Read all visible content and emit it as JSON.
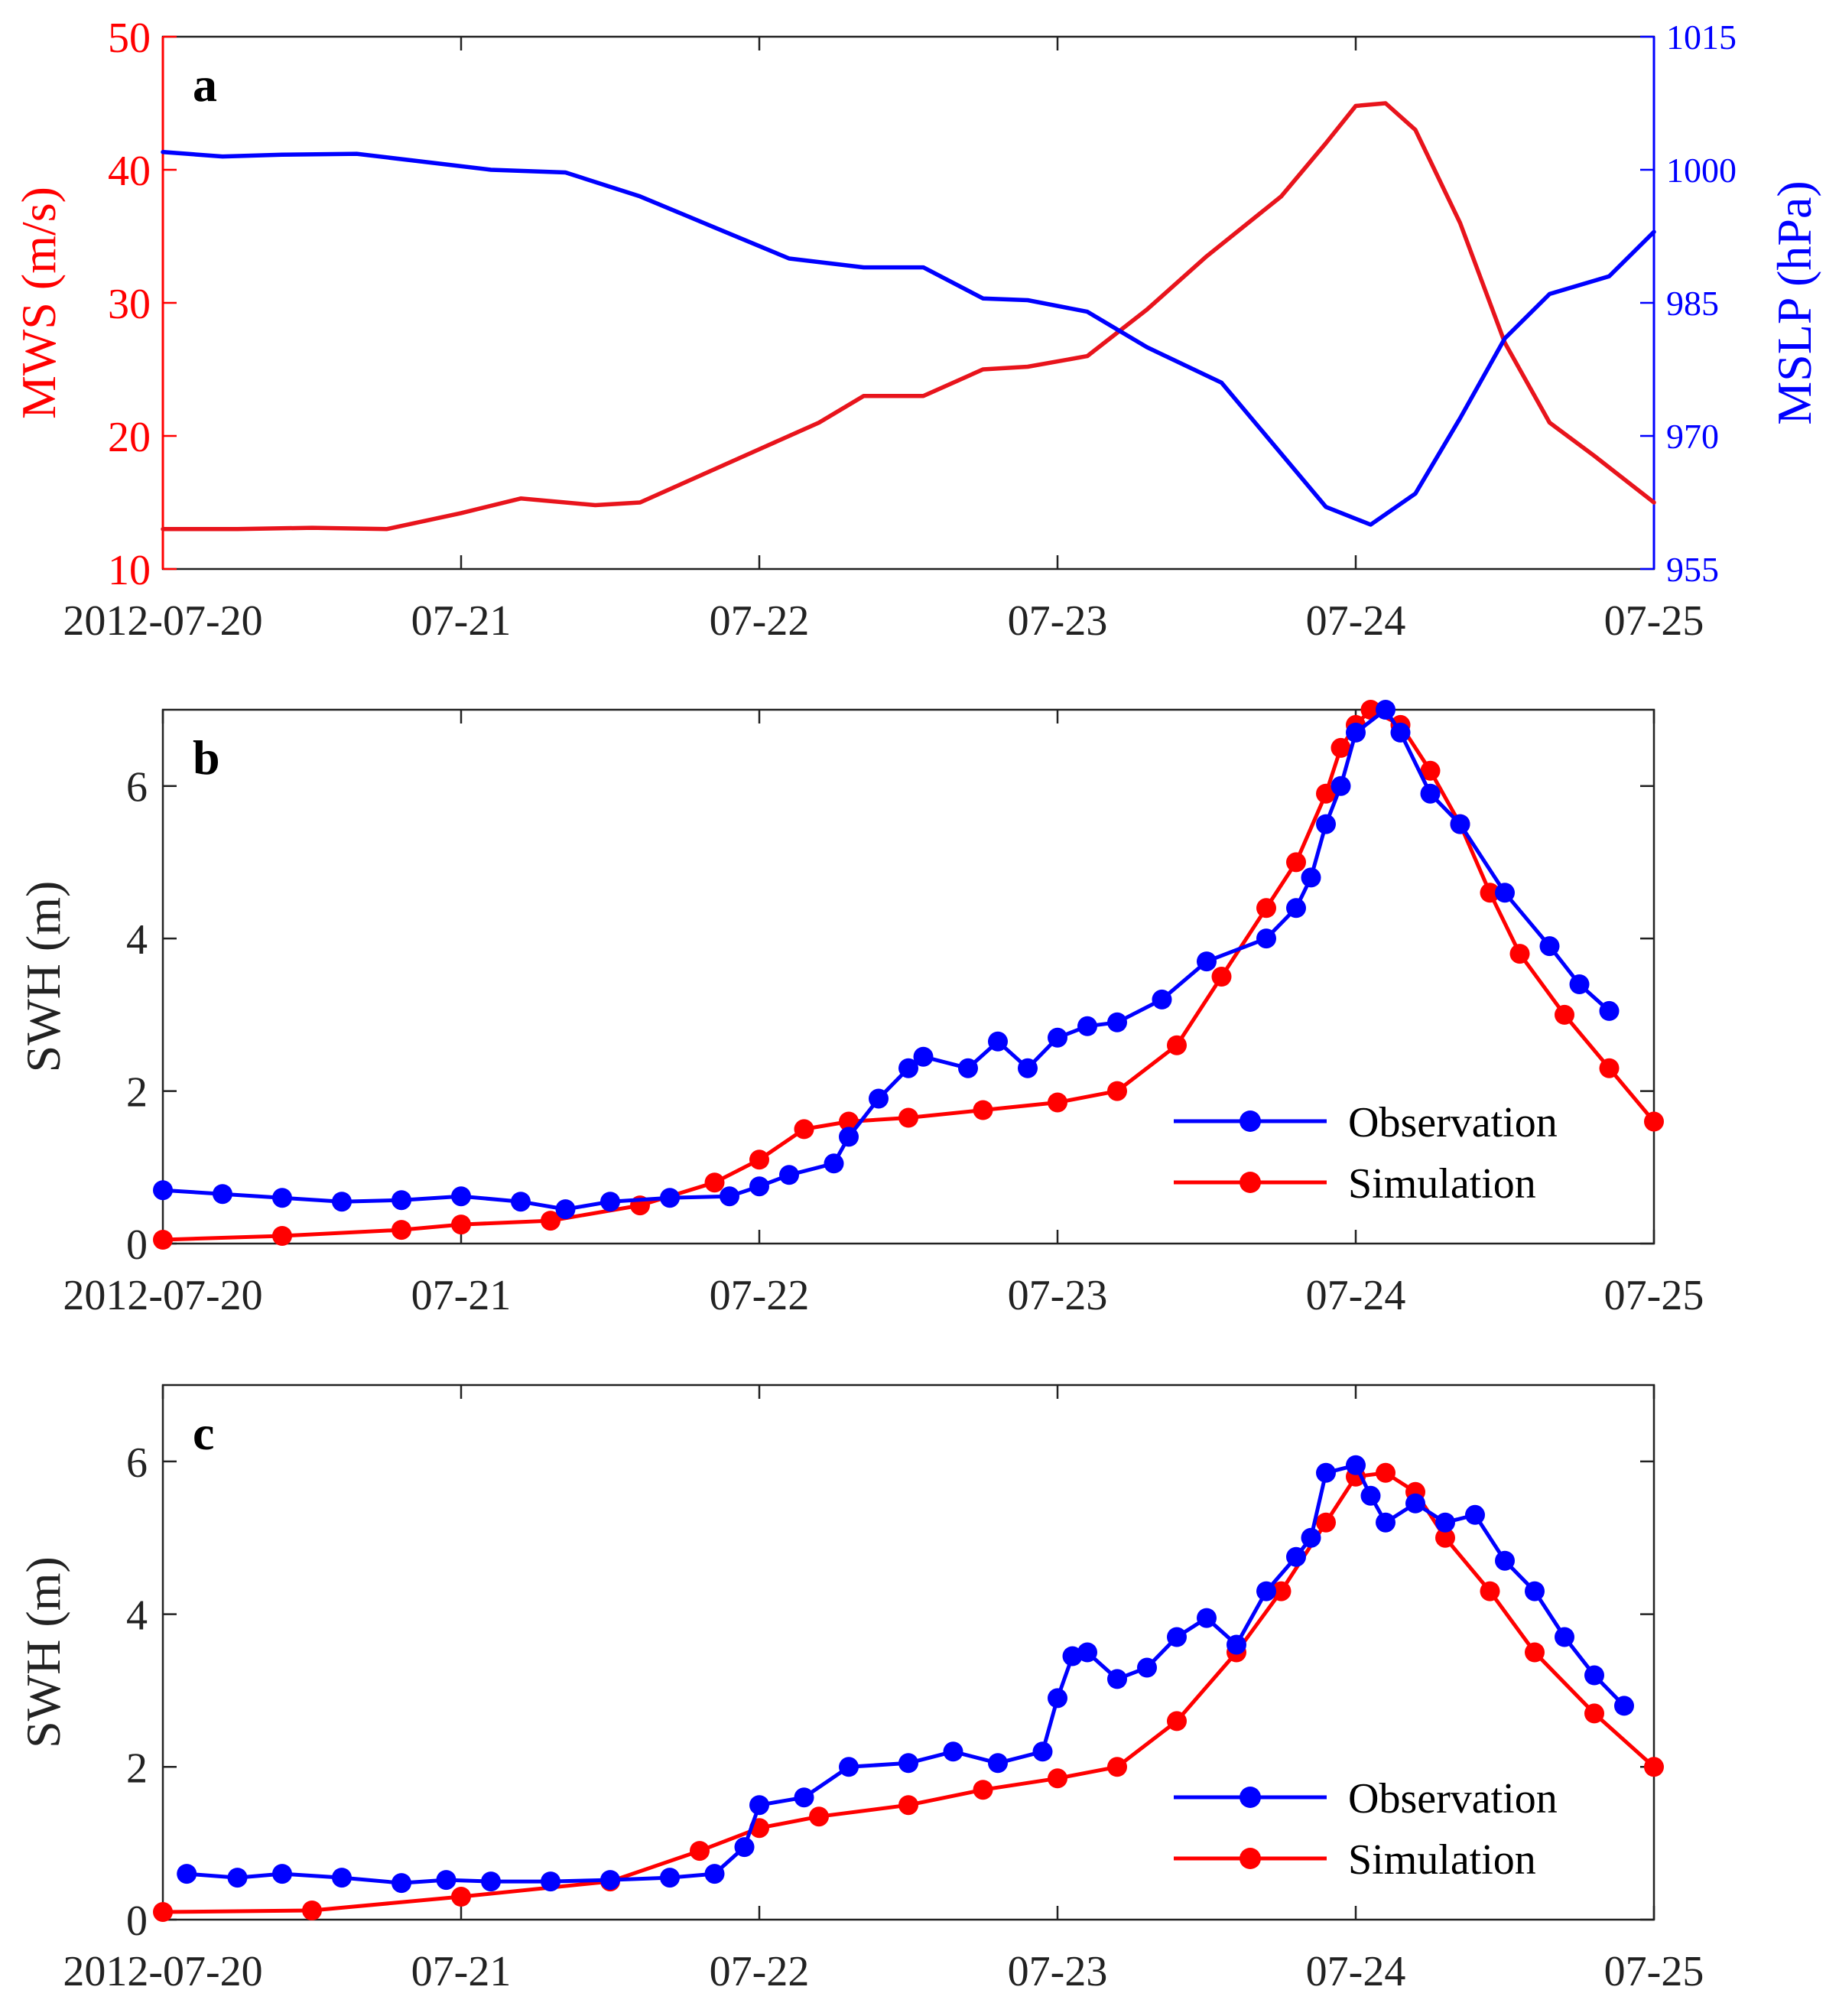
{
  "chart_data": [
    {
      "panel": "a",
      "type": "line",
      "x_dates": [
        "2012-07-20",
        "07-21",
        "07-22",
        "07-23",
        "07-24",
        "07-25"
      ],
      "xlim_days": [
        0,
        5
      ],
      "ylabel_left": "MWS (m/s)",
      "ylabel_right": "MSLP (hPa)",
      "ylim_left": [
        10,
        50
      ],
      "ylim_right": [
        955,
        1015
      ],
      "yticks_left": [
        "10",
        "20",
        "30",
        "40",
        "50"
      ],
      "yticks_right": [
        "955",
        "970",
        "985",
        "1000",
        "1015"
      ],
      "colors": {
        "left": "#ff0000",
        "right": "#0000ff"
      },
      "series": [
        {
          "name": "MWS",
          "axis": "left",
          "color": "#e8141c",
          "x": [
            0,
            0.25,
            0.5,
            0.75,
            1.0,
            1.2,
            1.45,
            1.6,
            1.75,
            2.0,
            2.2,
            2.35,
            2.55,
            2.75,
            2.9,
            3.1,
            3.3,
            3.5,
            3.75,
            3.9,
            4.0,
            4.1,
            4.2,
            4.35,
            4.5,
            4.65,
            4.8,
            5.0
          ],
          "values": [
            13,
            13,
            13.1,
            13,
            14.2,
            15.3,
            14.8,
            15,
            16.5,
            19,
            21,
            23,
            23,
            25,
            25.2,
            26,
            29.5,
            33.5,
            38,
            42,
            44.8,
            45,
            43,
            36,
            27,
            21,
            18.5,
            15
          ]
        },
        {
          "name": "MSLP",
          "axis": "right",
          "color": "#0000ff",
          "x": [
            0,
            0.2,
            0.4,
            0.65,
            0.85,
            1.1,
            1.35,
            1.6,
            1.85,
            2.1,
            2.35,
            2.55,
            2.75,
            2.9,
            3.1,
            3.3,
            3.55,
            3.75,
            3.9,
            4.05,
            4.2,
            4.35,
            4.5,
            4.65,
            4.85,
            5.0
          ],
          "values": [
            1002,
            1001.5,
            1001.7,
            1001.8,
            1001,
            1000,
            999.7,
            997,
            993.5,
            990,
            989,
            989,
            985.5,
            985.3,
            984,
            980,
            976,
            968,
            962,
            960,
            963.5,
            972,
            981,
            986,
            988,
            993
          ]
        }
      ]
    },
    {
      "panel": "b",
      "type": "line",
      "x_dates": [
        "2012-07-20",
        "07-21",
        "07-22",
        "07-23",
        "07-24",
        "07-25"
      ],
      "xlim_days": [
        0,
        5
      ],
      "ylabel": "SWH (m)",
      "ylim": [
        0,
        7
      ],
      "yticks": [
        "0",
        "2",
        "4",
        "6"
      ],
      "legend": [
        "Observation",
        "Simulation"
      ],
      "legend_position": "lower-right",
      "series": [
        {
          "name": "Observation",
          "color": "#0000ff",
          "x": [
            0,
            0.2,
            0.4,
            0.6,
            0.8,
            1.0,
            1.2,
            1.35,
            1.5,
            1.7,
            1.9,
            2.0,
            2.1,
            2.25,
            2.3,
            2.4,
            2.5,
            2.55,
            2.7,
            2.8,
            2.9,
            3.0,
            3.1,
            3.2,
            3.35,
            3.5,
            3.7,
            3.8,
            3.85,
            3.9,
            3.95,
            4.0,
            4.1,
            4.15,
            4.25,
            4.35,
            4.5,
            4.65,
            4.75,
            4.85
          ],
          "values": [
            0.7,
            0.65,
            0.6,
            0.55,
            0.57,
            0.62,
            0.55,
            0.45,
            0.55,
            0.6,
            0.62,
            0.75,
            0.9,
            1.05,
            1.4,
            1.9,
            2.3,
            2.45,
            2.3,
            2.65,
            2.3,
            2.7,
            2.85,
            2.9,
            3.2,
            3.7,
            4.0,
            4.4,
            4.8,
            5.5,
            6.0,
            6.7,
            7.0,
            6.7,
            5.9,
            5.5,
            4.6,
            3.9,
            3.4,
            3.05
          ]
        },
        {
          "name": "Simulation",
          "color": "#ff0000",
          "x": [
            0,
            0.4,
            0.8,
            1.0,
            1.3,
            1.6,
            1.85,
            2.0,
            2.15,
            2.3,
            2.5,
            2.75,
            3.0,
            3.2,
            3.4,
            3.55,
            3.7,
            3.8,
            3.9,
            3.95,
            4.0,
            4.05,
            4.15,
            4.25,
            4.35,
            4.45,
            4.55,
            4.7,
            4.85,
            5.0
          ],
          "values": [
            0.05,
            0.1,
            0.18,
            0.25,
            0.3,
            0.5,
            0.8,
            1.1,
            1.5,
            1.6,
            1.65,
            1.75,
            1.85,
            2.0,
            2.6,
            3.5,
            4.4,
            5.0,
            5.9,
            6.5,
            6.8,
            7.0,
            6.8,
            6.2,
            5.5,
            4.6,
            3.8,
            3.0,
            2.3,
            1.6
          ]
        }
      ]
    },
    {
      "panel": "c",
      "type": "line",
      "x_dates": [
        "2012-07-20",
        "07-21",
        "07-22",
        "07-23",
        "07-24",
        "07-25"
      ],
      "xlim_days": [
        0,
        5
      ],
      "ylabel": "SWH (m)",
      "ylim": [
        0,
        7
      ],
      "yticks": [
        "0",
        "2",
        "4",
        "6"
      ],
      "legend": [
        "Observation",
        "Simulation"
      ],
      "legend_position": "lower-right",
      "series": [
        {
          "name": "Observation",
          "color": "#0000ff",
          "x": [
            0.08,
            0.25,
            0.4,
            0.6,
            0.8,
            0.95,
            1.1,
            1.3,
            1.5,
            1.7,
            1.85,
            1.95,
            2.0,
            2.15,
            2.3,
            2.5,
            2.65,
            2.8,
            2.95,
            3.0,
            3.05,
            3.1,
            3.2,
            3.3,
            3.4,
            3.5,
            3.6,
            3.7,
            3.8,
            3.85,
            3.9,
            4.0,
            4.05,
            4.1,
            4.2,
            4.3,
            4.4,
            4.5,
            4.6,
            4.7,
            4.8,
            4.9
          ],
          "values": [
            0.6,
            0.55,
            0.6,
            0.55,
            0.48,
            0.52,
            0.5,
            0.5,
            0.52,
            0.55,
            0.6,
            0.95,
            1.5,
            1.6,
            2.0,
            2.05,
            2.2,
            2.05,
            2.2,
            2.9,
            3.45,
            3.5,
            3.15,
            3.3,
            3.7,
            3.95,
            3.6,
            4.3,
            4.75,
            5.0,
            5.85,
            5.95,
            5.55,
            5.2,
            5.45,
            5.2,
            5.3,
            4.7,
            4.3,
            3.7,
            3.2,
            2.8
          ]
        },
        {
          "name": "Simulation",
          "color": "#ff0000",
          "x": [
            0,
            0.5,
            1.0,
            1.5,
            1.8,
            2.0,
            2.2,
            2.5,
            2.75,
            3.0,
            3.2,
            3.4,
            3.6,
            3.75,
            3.9,
            4.0,
            4.1,
            4.2,
            4.3,
            4.45,
            4.6,
            4.8,
            5.0
          ],
          "values": [
            0.1,
            0.12,
            0.3,
            0.5,
            0.9,
            1.2,
            1.35,
            1.5,
            1.7,
            1.85,
            2.0,
            2.6,
            3.5,
            4.3,
            5.2,
            5.8,
            5.85,
            5.6,
            5.0,
            4.3,
            3.5,
            2.7,
            2.0
          ]
        }
      ]
    }
  ]
}
